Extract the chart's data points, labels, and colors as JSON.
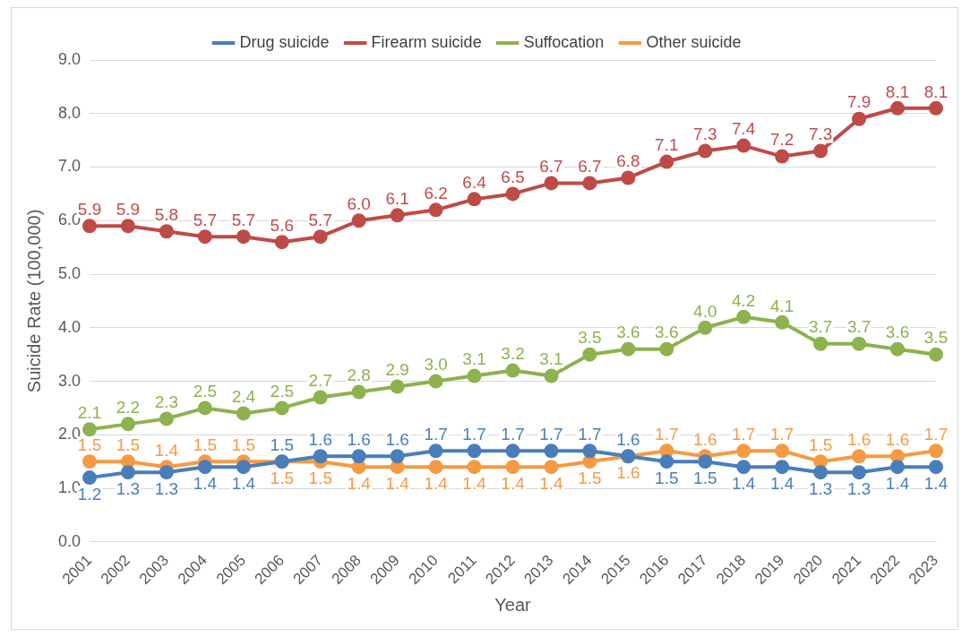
{
  "chart_data": {
    "type": "line",
    "xlabel": "Year",
    "ylabel": "Suicide Rate (100,000)",
    "categories": [
      "2001",
      "2002",
      "2003",
      "2004",
      "2005",
      "2006",
      "2007",
      "2008",
      "2009",
      "2010",
      "2011",
      "2012",
      "2013",
      "2014",
      "2015",
      "2016",
      "2017",
      "2018",
      "2019",
      "2020",
      "2021",
      "2022",
      "2023"
    ],
    "series": [
      {
        "name": "Drug suicide",
        "color": "#4a7ebb",
        "values": [
          1.2,
          1.3,
          1.3,
          1.4,
          1.4,
          1.5,
          1.6,
          1.6,
          1.6,
          1.7,
          1.7,
          1.7,
          1.7,
          1.7,
          1.6,
          1.5,
          1.5,
          1.4,
          1.4,
          1.3,
          1.3,
          1.4,
          1.4
        ],
        "value_labels": [
          "1.2",
          "1.3",
          "1.3",
          "1.4",
          "1.4",
          "1.5",
          "1.6",
          "1.6",
          "1.6",
          "1.7",
          "1.7",
          "1.7",
          "1.7",
          "1.7",
          "1.6",
          "1.5",
          "1.5",
          "1.4",
          "1.4",
          "1.3",
          "1.3",
          "1.4",
          "1.4"
        ]
      },
      {
        "name": "Firearm suicide",
        "color": "#be4b48",
        "values": [
          5.9,
          5.9,
          5.8,
          5.7,
          5.7,
          5.6,
          5.7,
          6.0,
          6.1,
          6.2,
          6.4,
          6.5,
          6.7,
          6.7,
          6.8,
          7.1,
          7.3,
          7.4,
          7.2,
          7.3,
          7.9,
          8.1,
          8.1
        ],
        "value_labels": [
          "5.9",
          "5.9",
          "5.8",
          "5.7",
          "5.7",
          "5.6",
          "5.7",
          "6.0",
          "6.1",
          "6.2",
          "6.4",
          "6.5",
          "6.7",
          "6.7",
          "6.8",
          "7.1",
          "7.3",
          "7.4",
          "7.2",
          "7.3",
          "7.9",
          "8.1",
          "8.1"
        ]
      },
      {
        "name": "Suffocation",
        "color": "#8db24e",
        "values": [
          2.1,
          2.2,
          2.3,
          2.5,
          2.4,
          2.5,
          2.7,
          2.8,
          2.9,
          3.0,
          3.1,
          3.2,
          3.1,
          3.5,
          3.6,
          3.6,
          4.0,
          4.2,
          4.1,
          3.7,
          3.7,
          3.6,
          3.5
        ],
        "value_labels": [
          "2.1",
          "2.2",
          "2.3",
          "2.5",
          "2.4",
          "2.5",
          "2.7",
          "2.8",
          "2.9",
          "3.0",
          "3.1",
          "3.2",
          "3.1",
          "3.5",
          "3.6",
          "3.6",
          "4.0",
          "4.2",
          "4.1",
          "3.7",
          "3.7",
          "3.6",
          "3.5"
        ]
      },
      {
        "name": "Other suicide",
        "color": "#f59a42",
        "values": [
          1.5,
          1.5,
          1.4,
          1.5,
          1.5,
          1.5,
          1.5,
          1.4,
          1.4,
          1.4,
          1.4,
          1.4,
          1.4,
          1.5,
          1.6,
          1.7,
          1.6,
          1.7,
          1.7,
          1.5,
          1.6,
          1.6,
          1.7
        ],
        "value_labels": [
          "1.5",
          "1.5",
          "1.4",
          "1.5",
          "1.5",
          "1.5",
          "1.5",
          "1.4",
          "1.4",
          "1.4",
          "1.4",
          "1.4",
          "1.4",
          "1.5",
          "1.6",
          "1.7",
          "1.6",
          "1.7",
          "1.7",
          "1.5",
          "1.6",
          "1.6",
          "1.7"
        ]
      }
    ],
    "ylim": [
      0,
      9
    ],
    "yticks": [
      {
        "value": 0,
        "label": "0.0"
      },
      {
        "value": 1,
        "label": "1.0"
      },
      {
        "value": 2,
        "label": "2.0"
      },
      {
        "value": 3,
        "label": "3.0"
      },
      {
        "value": 4,
        "label": "4.0"
      },
      {
        "value": 5,
        "label": "5.0"
      },
      {
        "value": 6,
        "label": "6.0"
      },
      {
        "value": 7,
        "label": "7.0"
      },
      {
        "value": 8,
        "label": "8.0"
      },
      {
        "value": 9,
        "label": "9.0"
      }
    ],
    "grid": "y",
    "legend": "top",
    "marker": "circle",
    "line_style": "solid"
  }
}
